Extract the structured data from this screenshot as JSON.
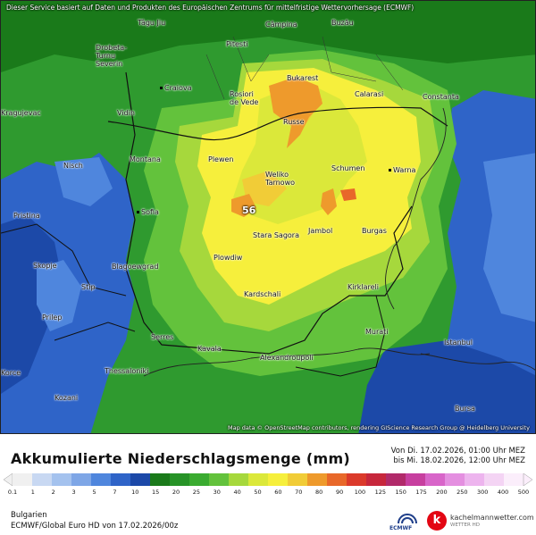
{
  "header": {
    "disclaimer": "Dieser Service basiert auf Daten und Produkten des Europäischen Zentrums für mittelfristige Wettervorhersage (ECMWF)",
    "credit": "Map data © OpenStreetMap contributors, rendering GIScience Research Group @ Heidelberg University"
  },
  "map": {
    "max_label": "56",
    "cities": [
      {
        "name": "Tâgu Jiu",
        "id": "targu-jiu"
      },
      {
        "name": "Câmpina",
        "id": "campina"
      },
      {
        "name": "Buzău",
        "id": "buzau"
      },
      {
        "name": "Drobeta-Turnu Severin",
        "id": "drobeta"
      },
      {
        "name": "Pitesti",
        "id": "pitesti"
      },
      {
        "name": "Craiova",
        "id": "craiova"
      },
      {
        "name": "Bukarest",
        "id": "bukarest"
      },
      {
        "name": "Rosiori de Vede",
        "id": "rosiori"
      },
      {
        "name": "Calarasi",
        "id": "calarasi"
      },
      {
        "name": "Constanta",
        "id": "constanta"
      },
      {
        "name": "Kragujevac",
        "id": "kragujevac"
      },
      {
        "name": "Vidin",
        "id": "vidin"
      },
      {
        "name": "Russe",
        "id": "russe"
      },
      {
        "name": "Montana",
        "id": "montana"
      },
      {
        "name": "Plewen",
        "id": "plewen"
      },
      {
        "name": "Schumen",
        "id": "schumen"
      },
      {
        "name": "Warna",
        "id": "warna"
      },
      {
        "name": "Nisch",
        "id": "nisch"
      },
      {
        "name": "Weliko Tarnowo",
        "id": "weliko-tarnowo"
      },
      {
        "name": "Pristina",
        "id": "pristina"
      },
      {
        "name": "Sofia",
        "id": "sofia"
      },
      {
        "name": "Jambol",
        "id": "jambol"
      },
      {
        "name": "Burgas",
        "id": "burgas"
      },
      {
        "name": "Stara Sagora",
        "id": "stara-sagora"
      },
      {
        "name": "Skopje",
        "id": "skopje"
      },
      {
        "name": "Blagoewgrad",
        "id": "blagoewgrad"
      },
      {
        "name": "Plowdiw",
        "id": "plowdiw"
      },
      {
        "name": "Stip",
        "id": "stip"
      },
      {
        "name": "Kirklareli",
        "id": "kirklareli"
      },
      {
        "name": "Kardschali",
        "id": "kardschali"
      },
      {
        "name": "Prilep",
        "id": "prilep"
      },
      {
        "name": "Serres",
        "id": "serres"
      },
      {
        "name": "Kavala",
        "id": "kavala"
      },
      {
        "name": "Murati",
        "id": "murati"
      },
      {
        "name": "Istanbul",
        "id": "istanbul"
      },
      {
        "name": "Alexandroupoli",
        "id": "alexandroupoli"
      },
      {
        "name": "Thessaloniki",
        "id": "thessaloniki"
      },
      {
        "name": "Korce",
        "id": "korce"
      },
      {
        "name": "Kozani",
        "id": "kozani"
      },
      {
        "name": "Bursa",
        "id": "bursa"
      }
    ]
  },
  "legend": {
    "title": "Akkumulierte Niederschlagsmenge (mm)",
    "period_from": "Von Di. 17.02.2026, 01:00 Uhr MEZ",
    "period_to": "bis Mi. 18.02.2026, 12:00 Uhr MEZ",
    "ticks": [
      "0.1",
      "1",
      "2",
      "3",
      "5",
      "7",
      "10",
      "15",
      "20",
      "25",
      "30",
      "40",
      "50",
      "60",
      "70",
      "80",
      "90",
      "100",
      "125",
      "150",
      "175",
      "200",
      "250",
      "300",
      "400",
      "500"
    ],
    "colors": [
      "#f0f0f0",
      "#c8d8f2",
      "#a4c2ee",
      "#7ea6e6",
      "#4f86dd",
      "#2f64c8",
      "#1c49a8",
      "#1a7a1a",
      "#279327",
      "#3aab30",
      "#63c23c",
      "#a6d83c",
      "#dbe83a",
      "#f6ef3c",
      "#f1cc37",
      "#ee9a2c",
      "#e8682a",
      "#db3a2b",
      "#c7273c",
      "#b12a6a",
      "#c73f9f",
      "#d865c9",
      "#e48fe0",
      "#edb4ee",
      "#f4d4f4",
      "#fbeefb"
    ]
  },
  "footer": {
    "region": "Bulgarien",
    "model": "ECMWF/Global Euro HD von 17.02.2026/00z",
    "ecmwf": "ECMWF",
    "provider": "kachelmannwetter.com",
    "provider_sub": "WETTER HD"
  }
}
